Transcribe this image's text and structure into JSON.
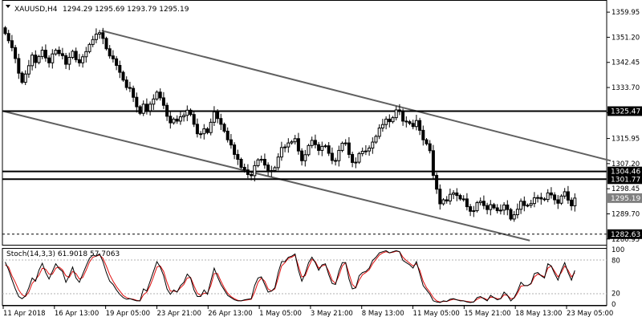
{
  "header": {
    "symbol": "XAUUSD,H4",
    "ohlc": "1294.29 1295.69 1293.79 1295.19"
  },
  "colors": {
    "background": "#ffffff",
    "candle": "#000000",
    "trendline": "#606060",
    "level_line": "#000000",
    "stoch_main": "#000000",
    "stoch_signal": "#e01010",
    "price_tag": "#000000",
    "current_tag": "#808080"
  },
  "chart_data": [
    {
      "type": "candlestick",
      "title": "XAUUSD,H4",
      "ylim": [
        1279.5,
        1362.5
      ],
      "price_axis": [
        "1359.95",
        "1351.20",
        "1342.45",
        "1333.70",
        "1324.95",
        "1315.95",
        "1307.20",
        "1298.45",
        "1289.70",
        "1280.95"
      ],
      "x_labels": [
        "11 Apr 2018",
        "16 Apr 13:00",
        "19 Apr 05:00",
        "23 Apr 21:00",
        "26 Apr 13:00",
        "1 May 05:00",
        "3 May 21:00",
        "8 May 13:00",
        "11 May 05:00",
        "15 May 21:00",
        "18 May 13:00",
        "23 May 05:00"
      ],
      "horizontal_levels": [
        {
          "label": "1325.47",
          "value": 1325.47,
          "style": "solid"
        },
        {
          "label": "1304.46",
          "value": 1304.46,
          "style": "solid"
        },
        {
          "label": "1301.77",
          "value": 1301.77,
          "style": "solid"
        },
        {
          "label": "1282.63",
          "value": 1282.63,
          "style": "dashed"
        }
      ],
      "current_price": {
        "label": "1295.19",
        "value": 1295.19
      },
      "trend_channel": {
        "upper": [
          {
            "bar": 29,
            "price": 1353.5
          },
          {
            "bar": 180,
            "price": 1308.2
          }
        ],
        "lower": [
          {
            "bar": 0,
            "price": 1325.4
          },
          {
            "bar": 156,
            "price": 1280.4
          }
        ]
      },
      "series": [
        {
          "name": "XAUUSD",
          "close": [
            1352.5,
            1350.0,
            1347.6,
            1343.8,
            1338.7,
            1335.5,
            1338.4,
            1341.3,
            1345.0,
            1342.4,
            1344.5,
            1346.7,
            1344.0,
            1342.3,
            1345.4,
            1346.7,
            1345.5,
            1344.8,
            1341.8,
            1344.2,
            1346.3,
            1343.4,
            1342.3,
            1344.4,
            1346.2,
            1348.7,
            1350.4,
            1352.3,
            1352.8,
            1350.8,
            1347.2,
            1344.7,
            1343.7,
            1341.4,
            1339.0,
            1336.3,
            1333.7,
            1333.4,
            1330.3,
            1327.0,
            1324.7,
            1327.9,
            1325.6,
            1327.9,
            1329.7,
            1332.1,
            1330.1,
            1327.5,
            1323.7,
            1321.4,
            1322.7,
            1322.0,
            1323.5,
            1324.0,
            1325.8,
            1324.3,
            1320.9,
            1317.6,
            1317.6,
            1319.3,
            1318.0,
            1321.6,
            1325.2,
            1322.9,
            1320.9,
            1318.5,
            1315.5,
            1313.7,
            1310.4,
            1308.7,
            1305.9,
            1305.0,
            1303.4,
            1303.0,
            1306.5,
            1308.5,
            1308.7,
            1306.7,
            1304.6,
            1304.8,
            1305.8,
            1309.5,
            1312.8,
            1313.0,
            1314.4,
            1314.8,
            1315.9,
            1311.6,
            1308.2,
            1310.3,
            1313.5,
            1315.3,
            1313.8,
            1311.8,
            1313.2,
            1313.4,
            1310.8,
            1308.3,
            1308.2,
            1311.8,
            1314.3,
            1314.4,
            1310.4,
            1307.6,
            1307.7,
            1310.7,
            1311.5,
            1311.6,
            1312.6,
            1314.7,
            1316.7,
            1319.6,
            1320.8,
            1322.7,
            1321.8,
            1323.2,
            1325.9,
            1325.4,
            1322.0,
            1321.8,
            1321.2,
            1320.1,
            1322.2,
            1318.8,
            1315.5,
            1314.1,
            1311.7,
            1303.1,
            1298.3,
            1293.2,
            1294.6,
            1294.2,
            1296.5,
            1297.0,
            1296.1,
            1294.9,
            1294.9,
            1292.2,
            1290.6,
            1290.8,
            1293.6,
            1294.1,
            1292.6,
            1291.2,
            1292.9,
            1291.8,
            1290.8,
            1291.0,
            1292.8,
            1291.2,
            1287.9,
            1289.4,
            1291.3,
            1294.1,
            1292.6,
            1292.7,
            1293.3,
            1295.3,
            1295.4,
            1294.9,
            1294.7,
            1297.0,
            1296.3,
            1294.6,
            1293.4,
            1295.9,
            1297.4,
            1294.5,
            1292.5,
            1295.19
          ]
        }
      ]
    },
    {
      "type": "line",
      "title": "Stoch(14,3,3) 61.9018 57.7063",
      "ylim": [
        0,
        100
      ],
      "y_labels": [
        "100",
        "80",
        "20",
        "0"
      ],
      "levels": [
        80,
        20
      ],
      "series": [
        {
          "name": "Main",
          "values": [
            77,
            63,
            45,
            28,
            14,
            10,
            15,
            30,
            48,
            42,
            62,
            75,
            58,
            46,
            60,
            74,
            65,
            60,
            40,
            52,
            68,
            48,
            40,
            55,
            70,
            84,
            90,
            88,
            92,
            78,
            58,
            42,
            36,
            26,
            18,
            12,
            9,
            10,
            8,
            6,
            6,
            28,
            24,
            42,
            60,
            78,
            68,
            52,
            28,
            18,
            26,
            22,
            34,
            40,
            55,
            48,
            26,
            14,
            14,
            26,
            18,
            42,
            66,
            50,
            36,
            26,
            16,
            12,
            8,
            6,
            6,
            8,
            9,
            10,
            34,
            48,
            50,
            36,
            22,
            24,
            30,
            58,
            78,
            78,
            86,
            88,
            92,
            62,
            42,
            56,
            76,
            86,
            76,
            62,
            72,
            74,
            54,
            38,
            36,
            60,
            76,
            76,
            46,
            28,
            30,
            52,
            58,
            60,
            66,
            80,
            86,
            94,
            96,
            98,
            94,
            96,
            98,
            96,
            80,
            76,
            72,
            66,
            78,
            56,
            34,
            26,
            18,
            6,
            4,
            3,
            6,
            5,
            9,
            10,
            8,
            6,
            6,
            4,
            3,
            4,
            12,
            14,
            10,
            6,
            16,
            12,
            8,
            10,
            22,
            16,
            6,
            12,
            24,
            40,
            34,
            34,
            38,
            56,
            58,
            52,
            48,
            74,
            70,
            56,
            44,
            62,
            76,
            58,
            44,
            61.9
          ]
        },
        {
          "name": "Signal",
          "values": [
            72,
            68,
            52,
            40,
            26,
            17,
            14,
            22,
            38,
            45,
            53,
            66,
            64,
            55,
            55,
            66,
            68,
            63,
            52,
            49,
            60,
            56,
            46,
            49,
            62,
            77,
            86,
            88,
            90,
            84,
            70,
            54,
            42,
            32,
            24,
            16,
            12,
            10,
            9,
            7,
            6,
            17,
            22,
            34,
            50,
            68,
            70,
            60,
            40,
            24,
            24,
            23,
            30,
            36,
            48,
            49,
            34,
            20,
            16,
            20,
            20,
            34,
            56,
            56,
            42,
            30,
            20,
            14,
            10,
            7,
            6,
            7,
            8,
            9,
            22,
            40,
            48,
            42,
            28,
            24,
            28,
            48,
            70,
            76,
            84,
            86,
            90,
            70,
            50,
            52,
            68,
            82,
            78,
            66,
            70,
            72,
            60,
            44,
            38,
            52,
            70,
            76,
            56,
            36,
            30,
            44,
            54,
            58,
            63,
            74,
            82,
            90,
            94,
            96,
            94,
            95,
            97,
            96,
            86,
            80,
            75,
            70,
            74,
            62,
            42,
            30,
            22,
            12,
            6,
            4,
            5,
            5,
            7,
            9,
            8,
            7,
            6,
            5,
            4,
            4,
            9,
            12,
            11,
            8,
            13,
            12,
            10,
            10,
            17,
            16,
            10,
            11,
            20,
            33,
            34,
            34,
            37,
            50,
            55,
            53,
            50,
            66,
            70,
            60,
            50,
            58,
            70,
            62,
            50,
            57.7
          ]
        }
      ]
    }
  ]
}
